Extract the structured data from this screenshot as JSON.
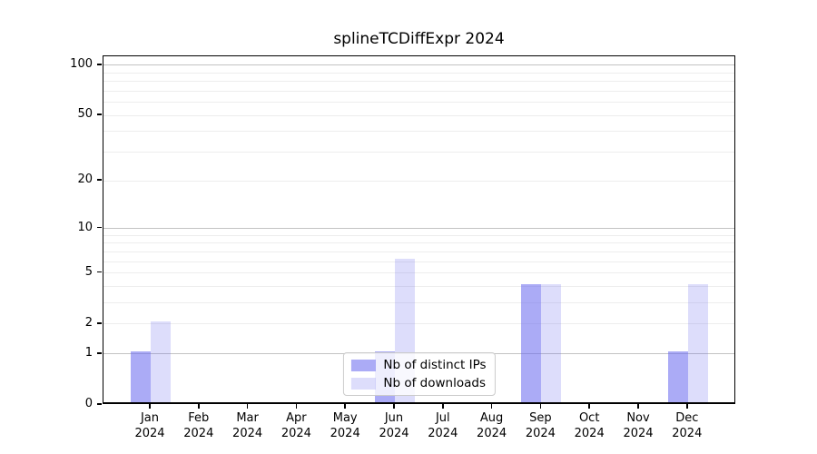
{
  "title": "splineTCDiffExpr 2024",
  "legend": {
    "position": "lower center",
    "items": [
      {
        "label": "Nb of distinct IPs",
        "color": "#6666ee8c"
      },
      {
        "label": "Nb of downloads",
        "color": "#6666ee38"
      }
    ]
  },
  "chart_data": {
    "type": "bar",
    "title": "splineTCDiffExpr 2024",
    "categories": [
      {
        "month": "Jan",
        "year": "2024"
      },
      {
        "month": "Feb",
        "year": "2024"
      },
      {
        "month": "Mar",
        "year": "2024"
      },
      {
        "month": "Apr",
        "year": "2024"
      },
      {
        "month": "May",
        "year": "2024"
      },
      {
        "month": "Jun",
        "year": "2024"
      },
      {
        "month": "Jul",
        "year": "2024"
      },
      {
        "month": "Aug",
        "year": "2024"
      },
      {
        "month": "Sep",
        "year": "2024"
      },
      {
        "month": "Oct",
        "year": "2024"
      },
      {
        "month": "Nov",
        "year": "2024"
      },
      {
        "month": "Dec",
        "year": "2024"
      }
    ],
    "series": [
      {
        "name": "Nb of distinct IPs",
        "color": "#6666ee8c",
        "values": [
          1,
          0,
          0,
          0,
          0,
          1,
          0,
          0,
          4,
          0,
          0,
          1
        ]
      },
      {
        "name": "Nb of downloads",
        "color": "#6666ee38",
        "values": [
          2,
          0,
          0,
          0,
          0,
          6,
          0,
          0,
          4,
          0,
          0,
          4
        ]
      }
    ],
    "xlabel": "",
    "ylabel": "",
    "yscale": "log1p",
    "ylim": [
      0,
      113
    ],
    "y_ticks": [
      0,
      1,
      2,
      5,
      10,
      20,
      50,
      100
    ],
    "y_major_gridlines": [
      1,
      10,
      100
    ],
    "y_minor_gridlines": [
      2,
      3,
      4,
      5,
      6,
      7,
      8,
      9,
      20,
      30,
      40,
      50,
      60,
      70,
      80,
      90
    ],
    "grid": true,
    "legend_position": "lower center"
  }
}
